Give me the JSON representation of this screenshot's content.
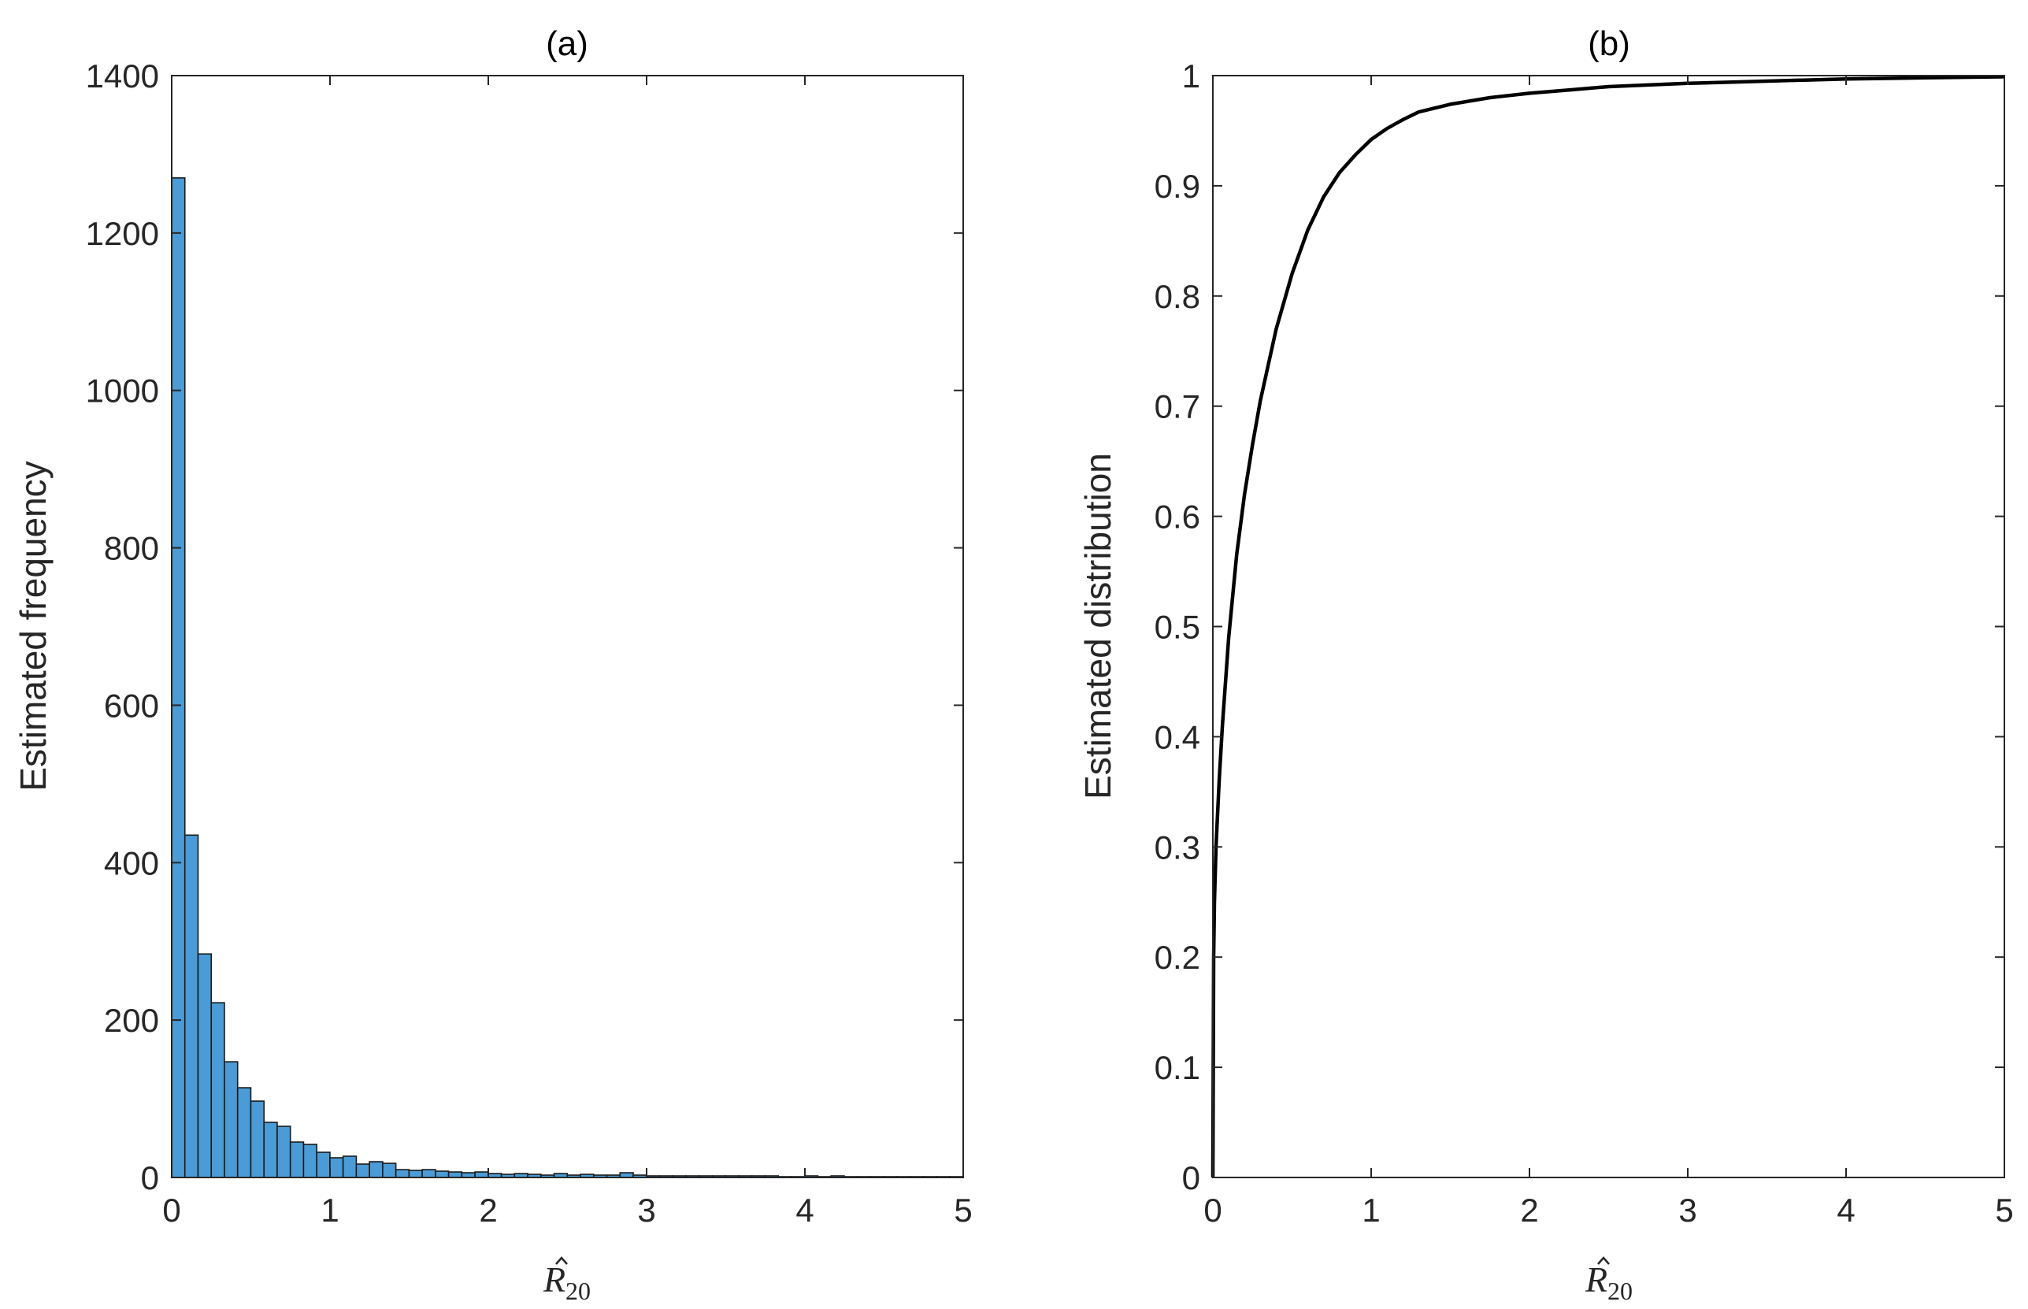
{
  "chart_data": [
    {
      "type": "bar",
      "title": "(a)",
      "xlabel_symbol": "R",
      "xlabel_subscript": "20",
      "ylabel": "Estimated frequency",
      "xlim": [
        0,
        5
      ],
      "ylim": [
        0,
        1400
      ],
      "xticks": [
        "0",
        "1",
        "2",
        "3",
        "4",
        "5"
      ],
      "yticks": [
        "0",
        "200",
        "400",
        "600",
        "800",
        "1000",
        "1200",
        "1400"
      ],
      "bin_width": 0.0833,
      "bar_color": "#4a9bd6",
      "edge_color": "#1a1a1a",
      "values": [
        1270,
        435,
        284,
        222,
        147,
        114,
        97,
        70,
        65,
        45,
        42,
        32,
        25,
        27,
        17,
        20,
        18,
        10,
        9,
        10,
        8,
        7,
        6,
        7,
        5,
        4,
        5,
        4,
        3,
        5,
        3,
        4,
        3,
        3,
        6,
        3,
        2,
        2,
        2,
        2,
        2,
        2,
        2,
        2,
        2,
        2,
        1,
        1,
        2,
        1,
        2,
        1,
        1,
        1,
        1,
        1,
        1,
        1,
        1,
        1
      ],
      "grid": false
    },
    {
      "type": "line",
      "title": "(b)",
      "xlabel_symbol": "R",
      "xlabel_subscript": "20",
      "ylabel": "Estimated distribution",
      "xlim": [
        0,
        5
      ],
      "ylim": [
        0,
        1
      ],
      "xticks": [
        "0",
        "1",
        "2",
        "3",
        "4",
        "5"
      ],
      "yticks": [
        "0",
        "0.1",
        "0.2",
        "0.3",
        "0.4",
        "0.5",
        "0.6",
        "0.7",
        "0.8",
        "0.9",
        "1"
      ],
      "line_color": "#000000",
      "x": [
        0,
        0.005,
        0.01,
        0.02,
        0.04,
        0.06,
        0.08,
        0.1,
        0.15,
        0.2,
        0.25,
        0.3,
        0.4,
        0.5,
        0.6,
        0.7,
        0.8,
        0.9,
        1.0,
        1.1,
        1.2,
        1.3,
        1.5,
        1.75,
        2.0,
        2.25,
        2.5,
        3.0,
        3.5,
        4.0,
        4.5,
        5.0
      ],
      "y": [
        0,
        0.2,
        0.25,
        0.3,
        0.36,
        0.41,
        0.45,
        0.49,
        0.565,
        0.62,
        0.665,
        0.705,
        0.77,
        0.82,
        0.86,
        0.89,
        0.912,
        0.928,
        0.942,
        0.952,
        0.96,
        0.967,
        0.974,
        0.98,
        0.984,
        0.987,
        0.99,
        0.993,
        0.995,
        0.997,
        0.998,
        0.999
      ],
      "grid": false
    }
  ]
}
